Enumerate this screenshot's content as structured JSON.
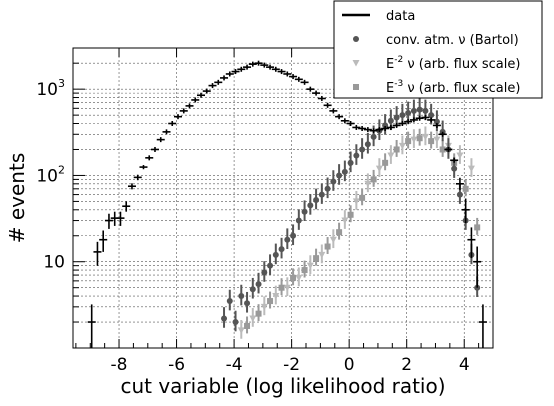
{
  "chart_data": {
    "type": "scatter",
    "title": "",
    "xlabel": "cut variable (log likelihood ratio)",
    "ylabel": "# events",
    "xlim": [
      -9.6,
      5.0
    ],
    "ylim": [
      1.0,
      3000
    ],
    "yscale": "log",
    "grid": true,
    "legend_position": "top-right",
    "x_ticks": [
      -8,
      -6,
      -4,
      -2,
      0,
      2,
      4
    ],
    "x_tick_labels": [
      "-8",
      "-6",
      "-4",
      "-2",
      "0",
      "2",
      "4"
    ],
    "y_major_ticks": [
      10,
      100,
      1000
    ],
    "y_tick_labels": [
      {
        "base": "10",
        "exp": ""
      },
      {
        "base": "10",
        "exp": "2"
      },
      {
        "base": "10",
        "exp": "3"
      }
    ],
    "series": [
      {
        "name": "data",
        "marker": "cross",
        "color": "#000000",
        "x": [
          -8.95,
          -8.75,
          -8.55,
          -8.35,
          -8.15,
          -7.95,
          -7.75,
          -7.55,
          -7.35,
          -7.15,
          -6.95,
          -6.75,
          -6.55,
          -6.35,
          -6.15,
          -5.95,
          -5.75,
          -5.55,
          -5.35,
          -5.15,
          -4.95,
          -4.75,
          -4.55,
          -4.35,
          -4.15,
          -3.95,
          -3.75,
          -3.55,
          -3.35,
          -3.15,
          -2.95,
          -2.75,
          -2.55,
          -2.35,
          -2.15,
          -1.95,
          -1.75,
          -1.55,
          -1.35,
          -1.15,
          -0.95,
          -0.75,
          -0.55,
          -0.35,
          -0.15,
          0.05,
          0.25,
          0.45,
          0.65,
          0.85,
          1.05,
          1.25,
          1.45,
          1.65,
          1.85,
          2.05,
          2.25,
          2.45,
          2.65,
          2.85,
          3.05,
          3.25,
          3.45,
          3.65,
          3.85,
          4.05,
          4.25,
          4.45,
          4.65
        ],
        "y": [
          2,
          13,
          18,
          30,
          32,
          32,
          44,
          75,
          95,
          125,
          160,
          200,
          260,
          320,
          400,
          480,
          560,
          640,
          750,
          850,
          950,
          1100,
          1200,
          1350,
          1500,
          1600,
          1700,
          1800,
          1950,
          2000,
          1900,
          1800,
          1700,
          1600,
          1500,
          1400,
          1300,
          1200,
          1000,
          900,
          780,
          650,
          560,
          480,
          430,
          400,
          360,
          350,
          340,
          330,
          340,
          350,
          360,
          380,
          400,
          420,
          440,
          460,
          470,
          440,
          380,
          300,
          200,
          150,
          80,
          40,
          18,
          10,
          2
        ],
        "err_low": [
          1,
          4,
          5,
          6,
          6,
          6,
          6,
          6,
          7,
          7,
          0,
          0,
          0,
          0,
          0,
          0,
          0,
          0,
          0,
          0,
          0,
          0,
          0,
          0,
          0,
          0,
          0,
          0,
          0,
          0,
          0,
          0,
          0,
          0,
          0,
          0,
          0,
          0,
          0,
          0,
          0,
          0,
          0,
          0,
          0,
          0,
          0,
          0,
          0,
          0,
          0,
          0,
          0,
          0,
          0,
          0,
          0,
          0,
          0,
          0,
          0,
          0,
          0,
          0,
          12,
          12,
          7,
          5,
          1
        ],
        "err_high": [
          1.2,
          4,
          5,
          6,
          6,
          6,
          6,
          6,
          7,
          7,
          0,
          0,
          0,
          0,
          0,
          0,
          0,
          0,
          0,
          0,
          0,
          0,
          0,
          0,
          0,
          0,
          0,
          0,
          0,
          0,
          0,
          0,
          0,
          0,
          0,
          0,
          0,
          0,
          0,
          0,
          0,
          0,
          0,
          0,
          0,
          0,
          0,
          0,
          0,
          0,
          0,
          0,
          0,
          0,
          0,
          0,
          0,
          0,
          0,
          0,
          0,
          0,
          0,
          0,
          14,
          14,
          7,
          5,
          1.2
        ]
      },
      {
        "name": "conv. atm. ν (Bartol)",
        "marker": "circle",
        "color": "#555555",
        "x": [
          -4.35,
          -4.15,
          -3.95,
          -3.75,
          -3.55,
          -3.35,
          -3.15,
          -2.95,
          -2.75,
          -2.55,
          -2.35,
          -2.15,
          -1.95,
          -1.75,
          -1.55,
          -1.35,
          -1.15,
          -0.95,
          -0.75,
          -0.55,
          -0.35,
          -0.15,
          0.05,
          0.25,
          0.45,
          0.65,
          0.85,
          1.05,
          1.25,
          1.45,
          1.65,
          1.85,
          2.05,
          2.25,
          2.45,
          2.65,
          2.85,
          3.05,
          3.25,
          3.45,
          3.65,
          3.85,
          4.05,
          4.25,
          4.45
        ],
        "y": [
          2.2,
          3.5,
          2.0,
          4.0,
          3.3,
          4.8,
          5.5,
          7.5,
          9.0,
          12,
          14,
          18,
          20,
          30,
          38,
          45,
          52,
          60,
          70,
          85,
          100,
          110,
          140,
          170,
          200,
          230,
          280,
          330,
          380,
          430,
          470,
          500,
          530,
          560,
          580,
          560,
          500,
          420,
          320,
          200,
          120,
          60,
          30,
          12,
          5
        ],
        "rel_err": 0.22
      },
      {
        "name": "E^-2 ν (arb. flux scale)",
        "marker": "triangle-down",
        "color": "#bbbbbb",
        "x": [
          -3.75,
          -3.35,
          -2.95,
          -2.55,
          -2.15,
          -1.75,
          -1.35,
          -0.95,
          -0.55,
          -0.15,
          0.25,
          0.65,
          1.05,
          1.45,
          1.85,
          2.25,
          2.65,
          3.05,
          3.45,
          3.85,
          4.25
        ],
        "y": [
          1.6,
          2.2,
          3.0,
          4.0,
          5.0,
          6.5,
          9.0,
          12,
          18,
          30,
          50,
          80,
          120,
          170,
          220,
          260,
          280,
          260,
          220,
          170,
          120
        ],
        "rel_err": 0.2
      },
      {
        "name": "E^-3 ν (arb. flux scale)",
        "marker": "square",
        "color": "#999999",
        "x": [
          -3.55,
          -3.15,
          -2.75,
          -2.35,
          -1.95,
          -1.55,
          -1.15,
          -0.75,
          -0.35,
          0.05,
          0.45,
          0.85,
          1.25,
          1.65,
          2.05,
          2.45,
          2.85,
          3.25,
          3.65,
          4.05,
          4.45
        ],
        "y": [
          1.8,
          2.5,
          3.5,
          5.0,
          6.5,
          8.0,
          11,
          15,
          22,
          35,
          55,
          90,
          140,
          200,
          250,
          270,
          250,
          200,
          140,
          70,
          25
        ],
        "rel_err": 0.18
      }
    ]
  },
  "legend": {
    "items": [
      {
        "label": "data",
        "sup": "",
        "text": "",
        "marker": "line",
        "color": "#000000"
      },
      {
        "label": "conv. atm. ν (Bartol)",
        "sup": "",
        "text": "",
        "marker": "circle",
        "color": "#555555"
      },
      {
        "label": "E",
        "sup": "-2",
        "text": " ν (arb. flux scale)",
        "marker": "triangle-down",
        "color": "#bbbbbb"
      },
      {
        "label": "E",
        "sup": "-3",
        "text": " ν (arb. flux scale)",
        "marker": "square",
        "color": "#999999"
      }
    ]
  }
}
